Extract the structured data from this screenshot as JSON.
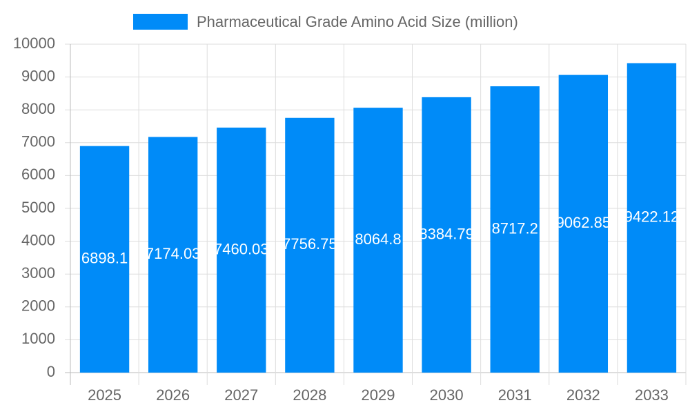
{
  "chart_data": {
    "type": "bar",
    "categories": [
      "2025",
      "2026",
      "2027",
      "2028",
      "2029",
      "2030",
      "2031",
      "2032",
      "2033"
    ],
    "series": [
      {
        "name": "Pharmaceutical Grade Amino Acid Size (million)",
        "color": "#008bf8",
        "values": [
          6898.1,
          7174.03,
          7460.03,
          7756.75,
          8064.8,
          8384.79,
          8717.2,
          9062.85,
          9422.12
        ]
      }
    ],
    "ylim": [
      0,
      10000
    ],
    "yticks": [
      0,
      1000,
      2000,
      3000,
      4000,
      5000,
      6000,
      7000,
      8000,
      9000,
      10000
    ],
    "grid": true,
    "legend": "top"
  }
}
